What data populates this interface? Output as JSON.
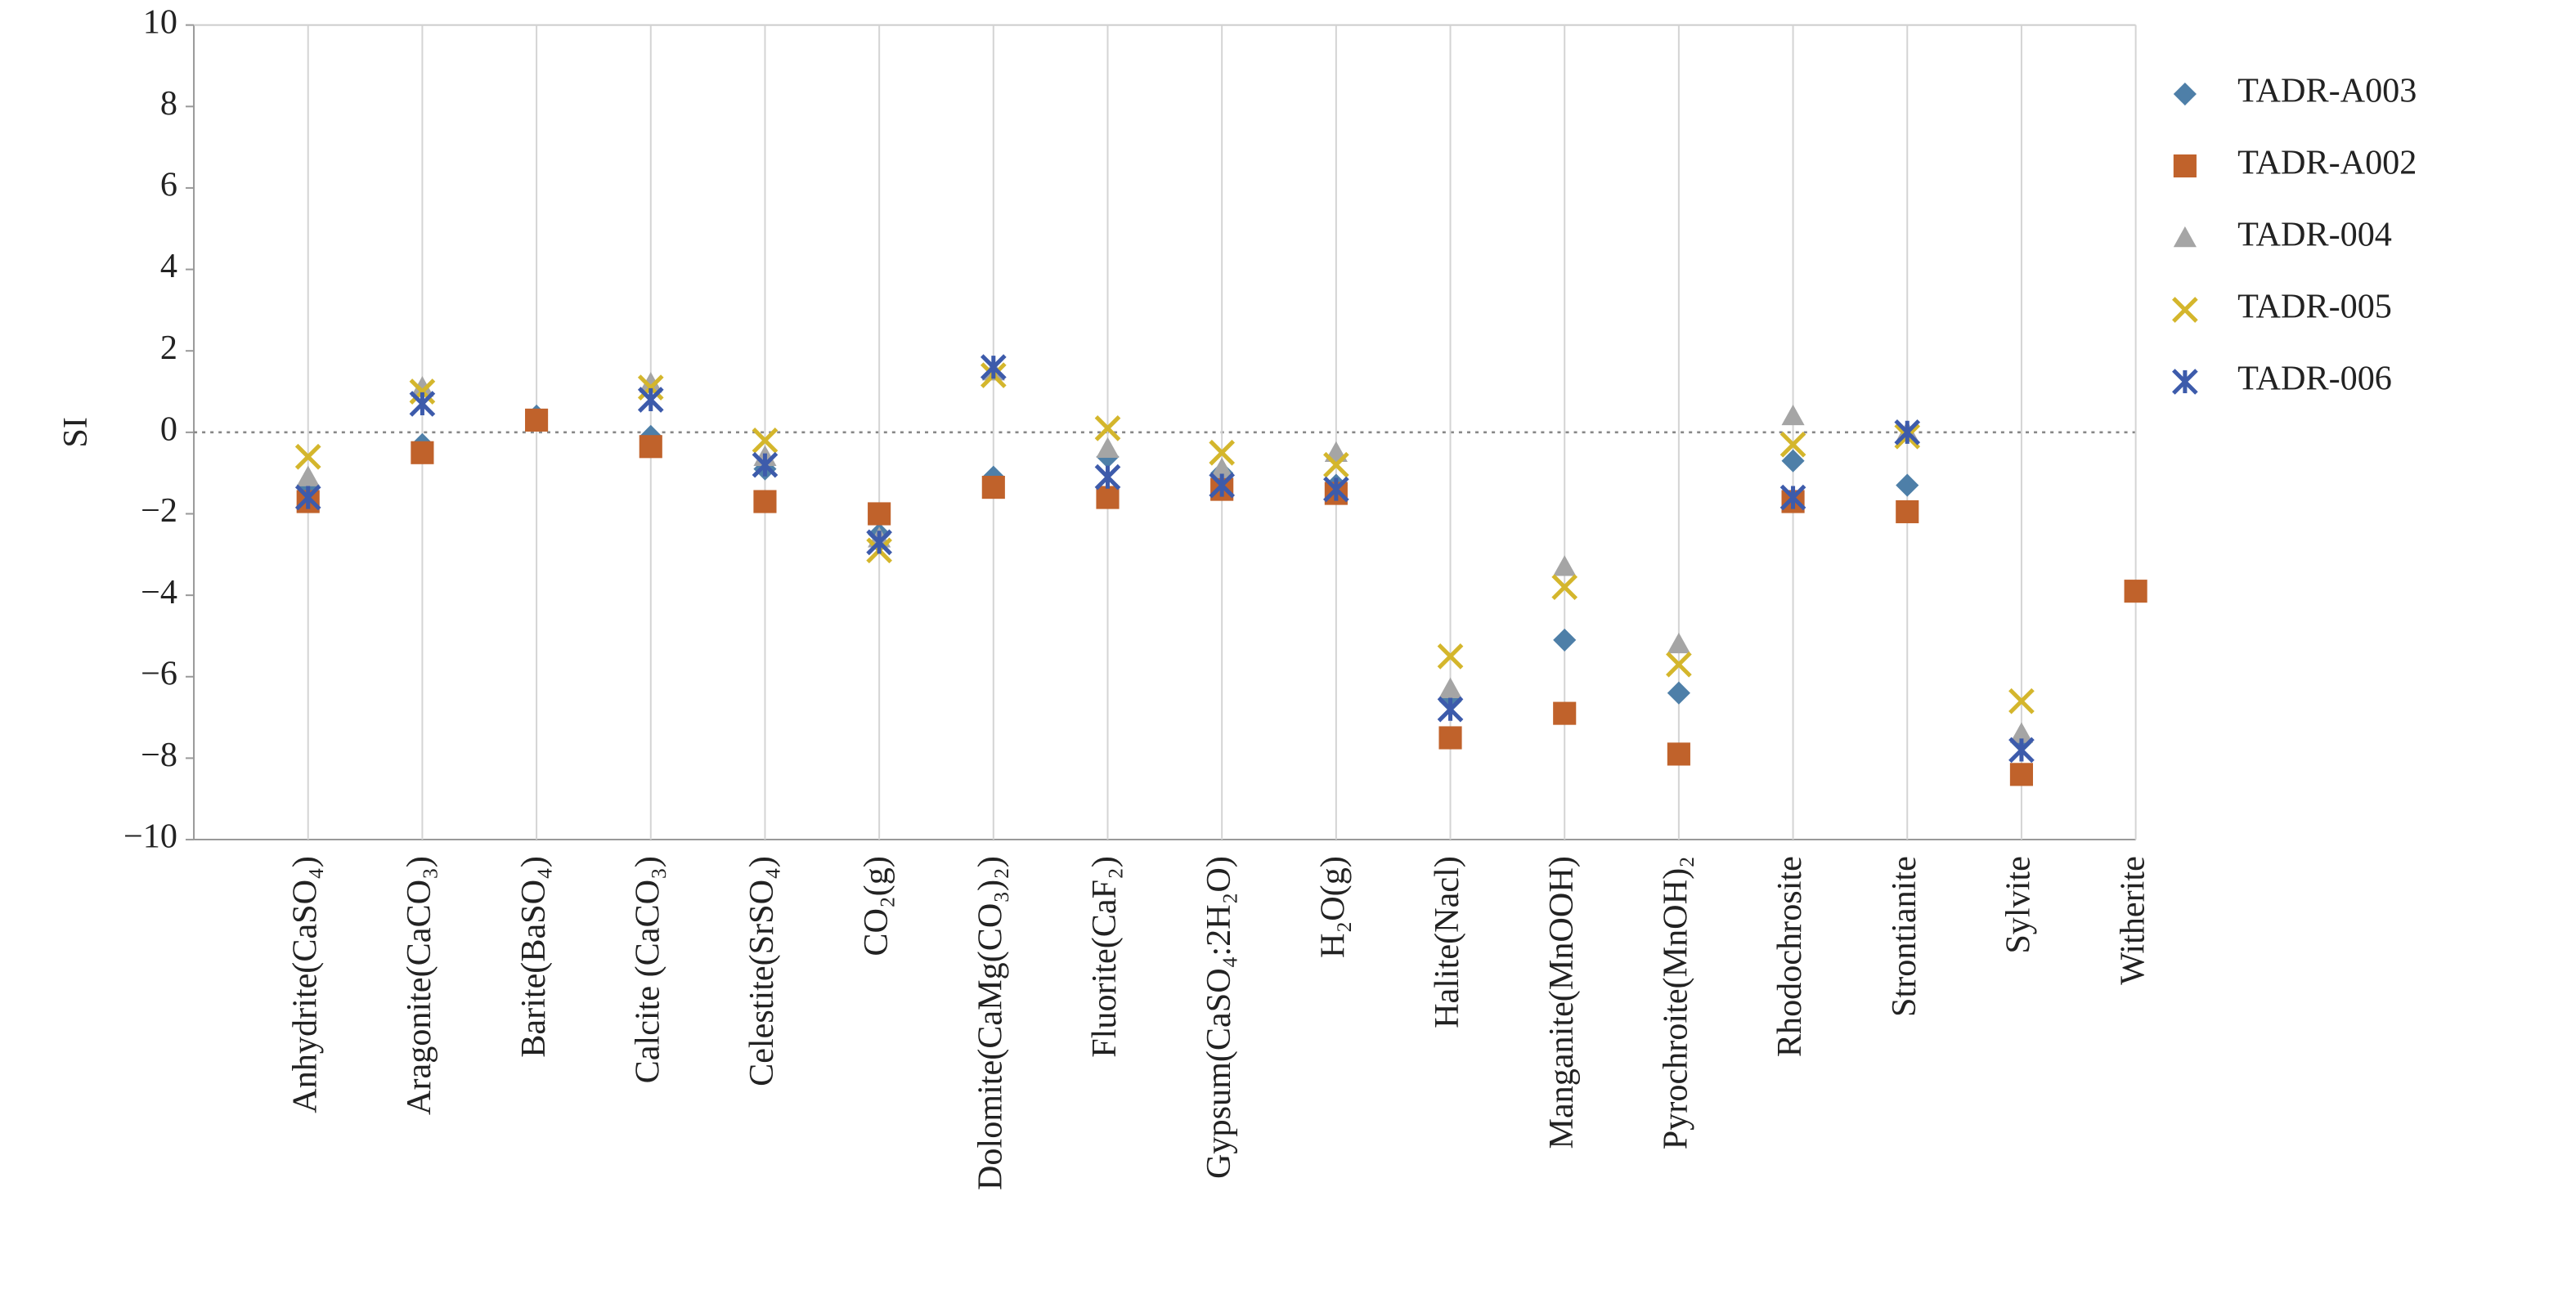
{
  "chart_data": {
    "type": "scatter",
    "y_label": "SI",
    "categories": [
      "Anhydrite(CaSO₄)",
      "Aragonite(CaCO₃)",
      "Barite(BaSO₄)",
      "Calcite (CaCO₃)",
      "Celestite(SrSO₄)",
      "CO₂(g)",
      "Dolomite(CaMg(CO₃)₂)",
      "Fluorite(CaF₂)",
      "Gypsum(CaSO₄:2H₂O)",
      "H₂O(g)",
      "Halite(Nacl)",
      "Manganite(MnOOH)",
      "Pyrochroite(MnOH)₂",
      "Rhodochrosite",
      "Strontianite",
      "Sylvite",
      "Witherite"
    ],
    "series": [
      {
        "name": "TADR-A003",
        "color": "#4e7fa8",
        "marker": "diamond",
        "values": [
          -1.3,
          -0.3,
          0.4,
          -0.1,
          -0.9,
          -2.5,
          -1.1,
          -0.6,
          -1.0,
          -1.3,
          -6.6,
          -5.1,
          -6.4,
          -0.7,
          -1.3,
          -7.6,
          null
        ]
      },
      {
        "name": "TADR-A002",
        "color": "#c0622b",
        "marker": "square",
        "values": [
          -1.7,
          -0.5,
          0.3,
          -0.35,
          -1.7,
          -2.0,
          -1.35,
          -1.6,
          -1.4,
          -1.5,
          -7.5,
          -6.9,
          -7.9,
          -1.7,
          -1.95,
          -8.4,
          -3.9
        ]
      },
      {
        "name": "TADR-004",
        "color": "#a5a5a5",
        "marker": "triangle",
        "values": [
          -1.1,
          1.1,
          null,
          1.2,
          -0.6,
          -2.6,
          1.5,
          -0.4,
          -0.9,
          -0.5,
          -6.3,
          -3.3,
          -5.2,
          0.4,
          0.0,
          -7.4,
          null
        ]
      },
      {
        "name": "TADR-005",
        "color": "#d4b62c",
        "marker": "x",
        "values": [
          -0.6,
          1.0,
          null,
          1.1,
          -0.2,
          -2.9,
          1.4,
          0.1,
          -0.5,
          -0.8,
          -5.5,
          -3.8,
          -5.7,
          -0.3,
          -0.1,
          -6.6,
          null
        ]
      },
      {
        "name": "TADR-006",
        "color": "#3d5bab",
        "marker": "star",
        "values": [
          -1.6,
          0.7,
          null,
          0.8,
          -0.8,
          -2.7,
          1.6,
          -1.1,
          -1.3,
          -1.4,
          -6.8,
          null,
          null,
          -1.6,
          0.0,
          -7.8,
          null
        ]
      }
    ],
    "ylim": [
      -10,
      10
    ],
    "yticks": [
      {
        "value": -10,
        "label": "−10"
      },
      {
        "value": -8,
        "label": "−8"
      },
      {
        "value": -6,
        "label": "−6"
      },
      {
        "value": -4,
        "label": "−4"
      },
      {
        "value": -2,
        "label": "−2"
      },
      0,
      2,
      4,
      6,
      8,
      10
    ],
    "grid": true,
    "legend": "right"
  }
}
